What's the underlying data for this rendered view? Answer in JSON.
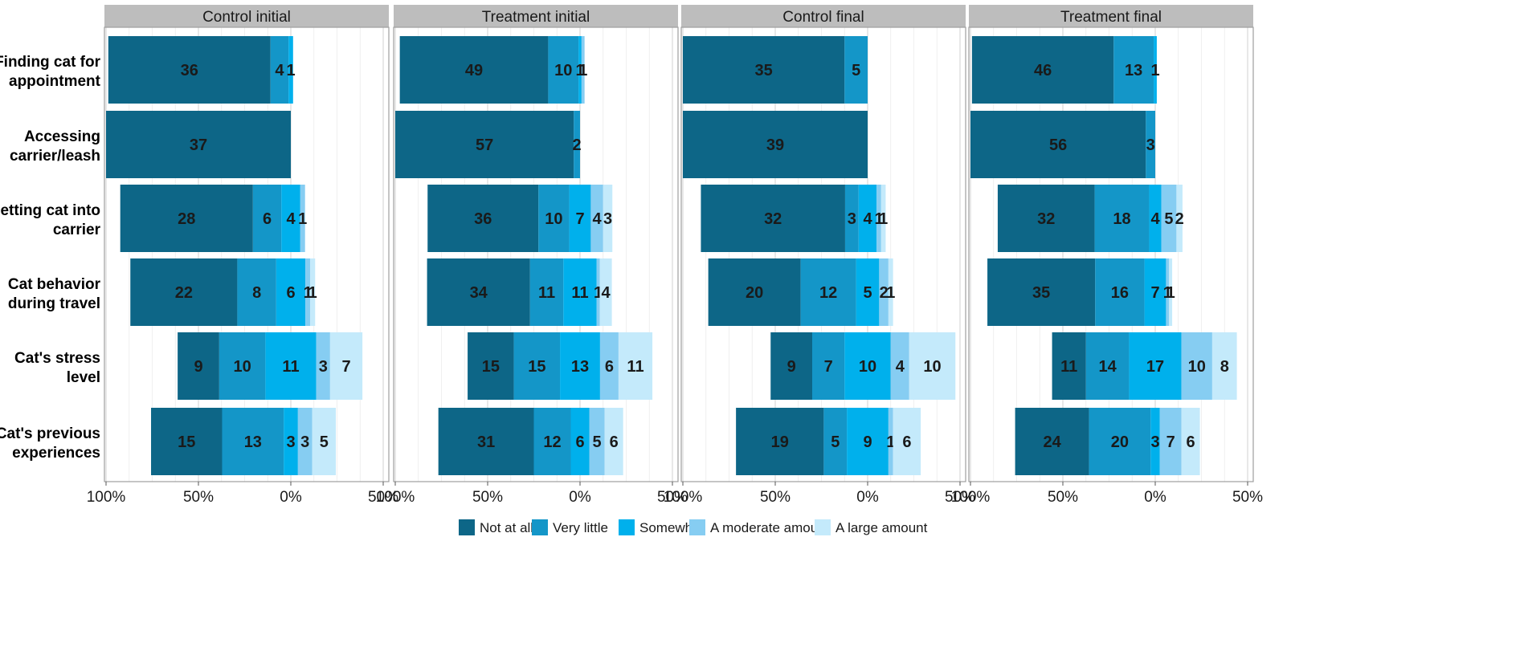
{
  "chart_data": {
    "type": "bar",
    "subtype": "diverging-stacked-bar",
    "x_axis": {
      "range": [
        -100,
        50
      ],
      "ticks": [
        -100,
        -50,
        0,
        50
      ],
      "tick_labels": [
        "100%",
        "50%",
        "0%",
        "50%"
      ]
    },
    "center_split": "middle category (Somewhat) split evenly around 0%",
    "legend": {
      "placement": "bottom",
      "entries": [
        {
          "label": "Not at all",
          "color": "#0D6687"
        },
        {
          "label": "Very little",
          "color": "#1496C8"
        },
        {
          "label": "Somewhat",
          "color": "#00B0EC"
        },
        {
          "label": "A moderate amount",
          "color": "#86CDF2"
        },
        {
          "label": "A large amount",
          "color": "#C4EAFB"
        }
      ]
    },
    "categories": [
      "Finding cat for appointment",
      "Accessing carrier/leash",
      "Getting cat into carrier",
      "Cat behavior during travel",
      "Cat's stress level",
      "Cat's previous experiences"
    ],
    "category_lines": [
      [
        "Finding cat for",
        "appointment"
      ],
      [
        "Accessing",
        "carrier/leash"
      ],
      [
        "Getting cat into",
        "carrier"
      ],
      [
        "Cat behavior",
        "during travel"
      ],
      [
        "Cat's stress",
        "level"
      ],
      [
        "Cat's previous",
        "experiences"
      ]
    ],
    "panels": [
      {
        "title": "Control initial",
        "counts": [
          [
            36,
            4,
            1,
            0,
            0
          ],
          [
            37,
            0,
            0,
            0,
            0
          ],
          [
            28,
            6,
            4,
            1,
            0
          ],
          [
            22,
            8,
            6,
            1,
            1
          ],
          [
            9,
            10,
            11,
            3,
            7
          ],
          [
            15,
            13,
            3,
            3,
            5
          ]
        ],
        "labels": [
          [
            "36",
            "4",
            "1",
            "",
            ""
          ],
          [
            "37",
            "",
            "",
            "",
            ""
          ],
          [
            "28",
            "6",
            "4",
            "1",
            ""
          ],
          [
            "22",
            "8",
            "6",
            "1",
            "1"
          ],
          [
            "9",
            "10",
            "11",
            "3",
            "7"
          ],
          [
            "15",
            "13",
            "3",
            "3",
            "5"
          ]
        ]
      },
      {
        "title": "Treatment initial",
        "counts": [
          [
            49,
            10,
            1,
            1,
            0
          ],
          [
            57,
            2,
            0,
            0,
            0
          ],
          [
            36,
            10,
            7,
            4,
            3
          ],
          [
            34,
            11,
            11,
            1,
            4
          ],
          [
            15,
            15,
            13,
            6,
            11
          ],
          [
            31,
            12,
            6,
            5,
            6
          ]
        ],
        "labels": [
          [
            "49",
            "10",
            "1",
            "1",
            ""
          ],
          [
            "57",
            "2",
            "",
            "",
            ""
          ],
          [
            "36",
            "10",
            "7",
            "4",
            "3"
          ],
          [
            "34",
            "11",
            "11",
            "1",
            "4"
          ],
          [
            "15",
            "15",
            "13",
            "6",
            "11"
          ],
          [
            "31",
            "12",
            "6",
            "5",
            "6"
          ]
        ]
      },
      {
        "title": "Control final",
        "counts": [
          [
            35,
            5,
            0,
            0,
            0
          ],
          [
            39,
            0,
            0,
            0,
            0
          ],
          [
            32,
            3,
            4,
            1,
            1
          ],
          [
            20,
            12,
            5,
            2,
            1
          ],
          [
            9,
            7,
            10,
            4,
            10
          ],
          [
            19,
            5,
            9,
            1,
            6
          ]
        ],
        "labels": [
          [
            "35",
            "5",
            "",
            "",
            ""
          ],
          [
            "39",
            "",
            "",
            "",
            ""
          ],
          [
            "32",
            "3",
            "4",
            "1",
            "1"
          ],
          [
            "20",
            "12",
            "5",
            "2",
            "1"
          ],
          [
            "9",
            "7",
            "10",
            "4",
            "10"
          ],
          [
            "19",
            "5",
            "9",
            "1",
            "6"
          ]
        ]
      },
      {
        "title": "Treatment final",
        "counts": [
          [
            46,
            13,
            1,
            0,
            0
          ],
          [
            56,
            3,
            0,
            0,
            0
          ],
          [
            32,
            18,
            4,
            5,
            2
          ],
          [
            35,
            16,
            7,
            1,
            1
          ],
          [
            11,
            14,
            17,
            10,
            8
          ],
          [
            24,
            20,
            3,
            7,
            6
          ]
        ],
        "labels": [
          [
            "46",
            "13",
            "1",
            "",
            ""
          ],
          [
            "56",
            "3",
            "",
            "",
            ""
          ],
          [
            "32",
            "18",
            "4",
            "5",
            "2"
          ],
          [
            "35",
            "16",
            "7",
            "1",
            "1"
          ],
          [
            "11",
            "14",
            "17",
            "10",
            "8"
          ],
          [
            "24",
            "20",
            "3",
            "7",
            "6"
          ]
        ]
      }
    ]
  }
}
